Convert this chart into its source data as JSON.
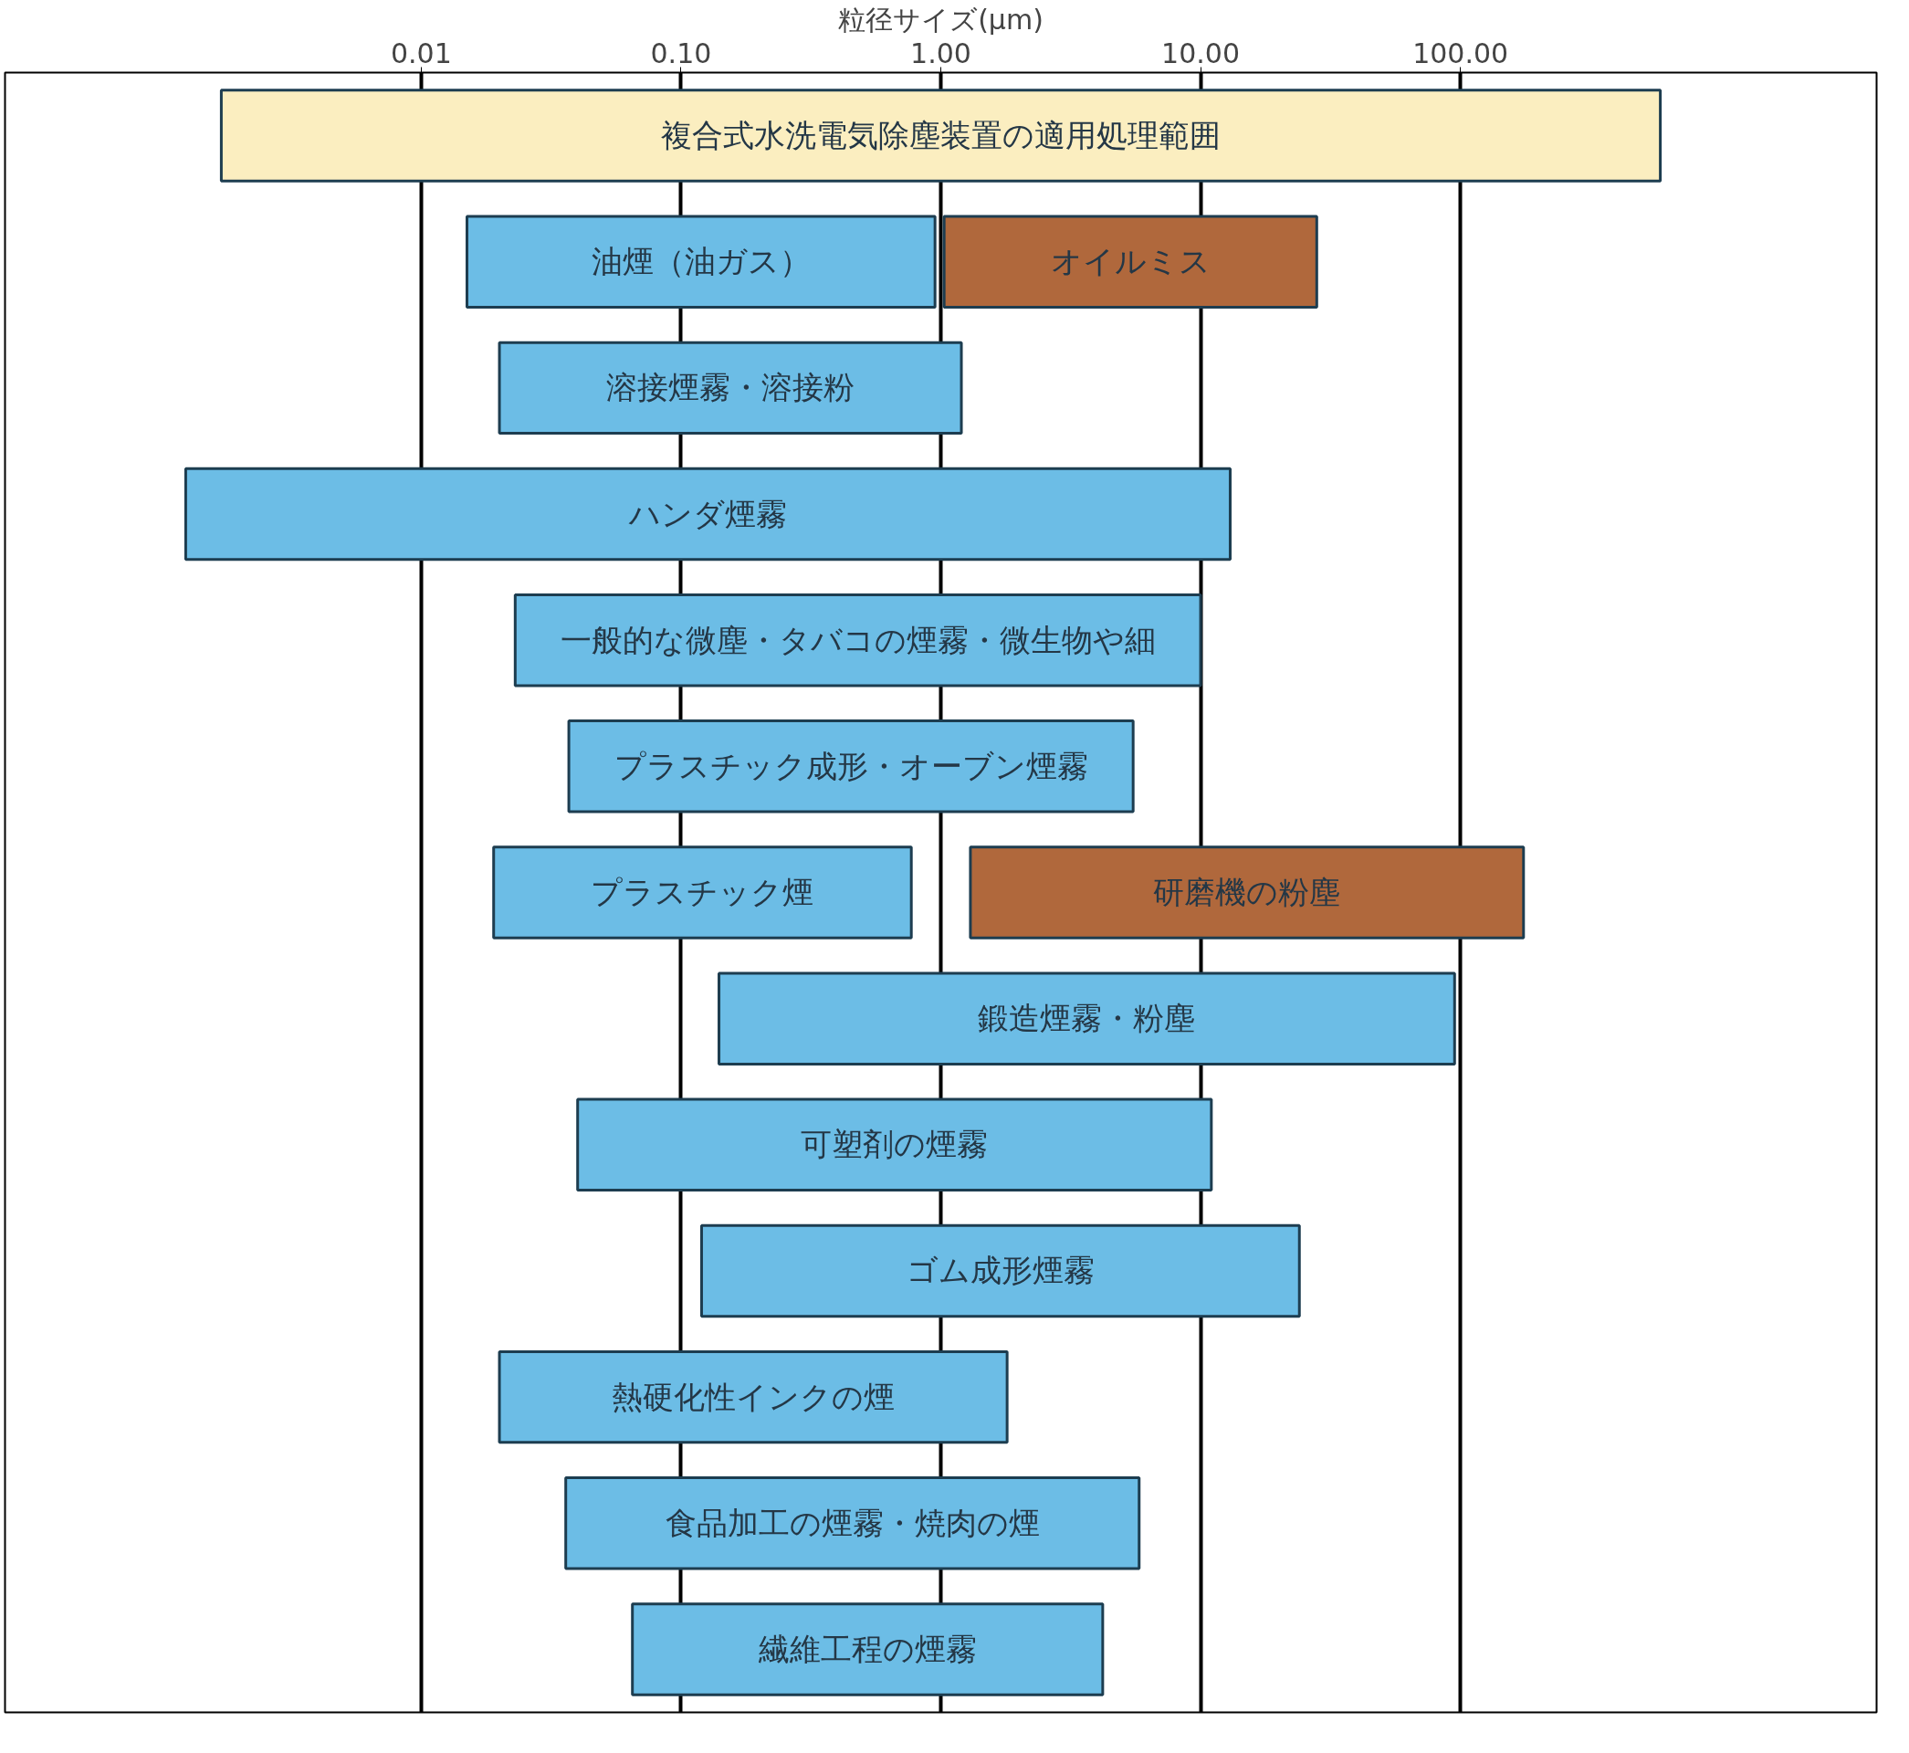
{
  "chart_data": {
    "type": "bar",
    "orientation": "horizontal",
    "log": "x",
    "xlabel": "粒径サイズ(μm)",
    "categories": [
      null,
      null,
      null,
      null,
      null,
      null,
      null,
      null,
      null,
      null,
      null,
      null,
      null
    ],
    "xlim": [
      0.00025,
      4000
    ],
    "xticks": [
      {
        "value": 0.01,
        "label": "0.01"
      },
      {
        "value": 0.1,
        "label": "0.10"
      },
      {
        "value": 1,
        "label": "1.00"
      },
      {
        "value": 10,
        "label": "10.00"
      },
      {
        "value": 100,
        "label": "100.00"
      }
    ],
    "grid": "x",
    "series": [
      {
        "color": "#fbeec0",
        "base": [
          0.0017,
          null,
          null,
          null,
          null,
          null,
          null,
          null,
          null,
          null,
          null,
          null,
          null
        ],
        "values": [
          588.3,
          null,
          null,
          null,
          null,
          null,
          null,
          null,
          null,
          null,
          null,
          null,
          null
        ],
        "value_labels": [
          "複合式水洗電気除塵装置の適用処理範囲",
          null,
          null,
          null,
          null,
          null,
          null,
          null,
          null,
          null,
          null,
          null,
          null
        ]
      },
      {
        "color": "#6cbde6",
        "base": [
          null,
          0.015,
          0.02,
          0.00124,
          0.023,
          0.037,
          0.019,
          0.14,
          0.04,
          0.12,
          0.02,
          0.036,
          0.065
        ],
        "values": [
          null,
          0.935,
          1.18,
          12.99876,
          9.977,
          5.463,
          0.751,
          94.86,
          10.96,
          23.88,
          1.78,
          5.764,
          4.135
        ],
        "value_labels": [
          null,
          "油煙（油ガス）",
          "溶接煙霧・溶接粉",
          "ハンダ煙霧",
          "一般的な微塵・タバコの煙霧・微生物や細",
          "プラスチック成形・オーブン煙霧",
          "プラスチック煙",
          "鍛造煙霧・粉塵",
          "可塑剤の煙霧",
          "ゴム成形煙霧",
          "熱硬化性インクの煙",
          "食品加工の煙霧・焼肉の煙",
          "繊維工程の煙霧"
        ]
      },
      {
        "color": "#b0683c",
        "base": [
          null,
          1.03,
          null,
          null,
          null,
          null,
          1.3,
          null,
          null,
          null,
          null,
          null,
          null
        ],
        "values": [
          null,
          26.97,
          null,
          null,
          null,
          null,
          173.7,
          null,
          null,
          null,
          null,
          null,
          null
        ],
        "value_labels": [
          null,
          "オイルミス",
          null,
          null,
          null,
          null,
          "研磨機の粉塵",
          null,
          null,
          null,
          null,
          null,
          null
        ]
      }
    ]
  }
}
